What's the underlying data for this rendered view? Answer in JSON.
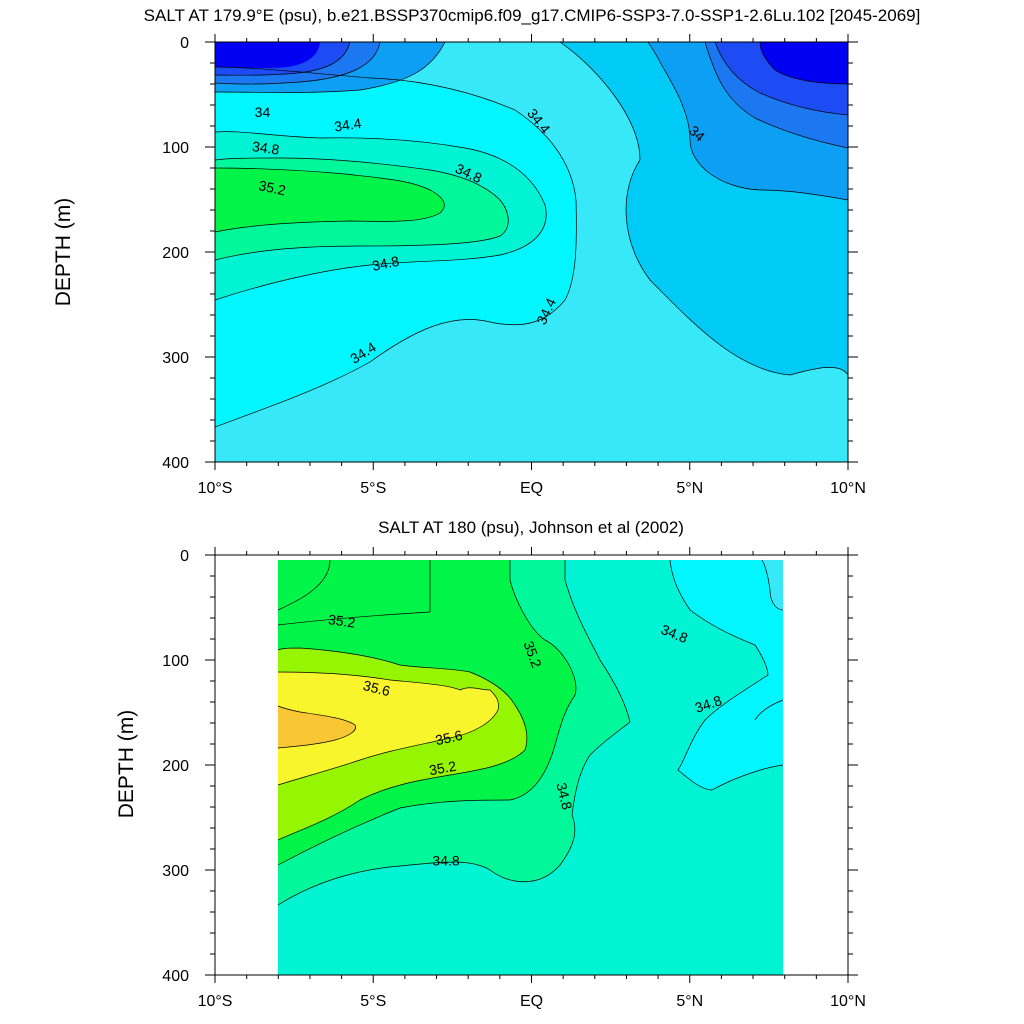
{
  "figure": {
    "background": "#ffffff",
    "fill_colors": {
      "lt33_6": "#0000f2",
      "33_6": "#1d4cf5",
      "33_8": "#1b78f1",
      "34_0": "#0d9ff3",
      "34_2": "#00cbf6",
      "34_4": "#36e8f8",
      "34_6": "#00f7ff",
      "34_8": "#00f3d2",
      "35_0": "#00f79a",
      "35_2": "#00f548",
      "35_4": "#96f500",
      "35_6": "#f9f52c",
      "35_8": "#fac734"
    }
  },
  "chart_data": [
    {
      "id": "model",
      "type": "contour",
      "title": "SALT AT 179.9°E (psu), b.e21.BSSP370cmip6.f09_g17.CMIP6-SSP3-7.0-SSP1-2.6Lu.102 [2045-2069]",
      "xlabel": "",
      "ylabel": "DEPTH (m)",
      "x_range": [
        -10,
        10
      ],
      "y_range": [
        400,
        0
      ],
      "y_reversed": true,
      "x_ticks": [
        {
          "value": -10,
          "label": "10°S"
        },
        {
          "value": -5,
          "label": "5°S"
        },
        {
          "value": 0,
          "label": "EQ"
        },
        {
          "value": 5,
          "label": "5°N"
        },
        {
          "value": 10,
          "label": "10°N"
        }
      ],
      "y_ticks": [
        0,
        100,
        200,
        300,
        400
      ],
      "data_x_range": [
        -10,
        10
      ],
      "data_y_range": [
        5,
        400
      ],
      "contour_interval": 0.2,
      "contour_labels": [
        {
          "text": "34",
          "x": -8.5,
          "y": 68,
          "angle": 0
        },
        {
          "text": "34.4",
          "x": -5.8,
          "y": 80,
          "angle": -8
        },
        {
          "text": "34.8",
          "x": -8.4,
          "y": 102,
          "angle": 8
        },
        {
          "text": "35.2",
          "x": -8.2,
          "y": 140,
          "angle": 12
        },
        {
          "text": "34.8",
          "x": -2.0,
          "y": 126,
          "angle": 25
        },
        {
          "text": "34.8",
          "x": -4.6,
          "y": 212,
          "angle": -12
        },
        {
          "text": "34.4",
          "x": 0.2,
          "y": 76,
          "angle": 52
        },
        {
          "text": "34",
          "x": 5.2,
          "y": 88,
          "angle": 42
        },
        {
          "text": "34.4",
          "x": 0.5,
          "y": 257,
          "angle": -65
        },
        {
          "text": "34.4",
          "x": -5.3,
          "y": 297,
          "angle": -32
        }
      ]
    },
    {
      "id": "obs",
      "type": "contour",
      "title": "SALT AT 180 (psu), Johnson et al (2002)",
      "xlabel": "",
      "ylabel": "DEPTH (m)",
      "x_range": [
        -10,
        10
      ],
      "y_range": [
        400,
        0
      ],
      "y_reversed": true,
      "x_ticks": [
        {
          "value": -10,
          "label": "10°S"
        },
        {
          "value": -5,
          "label": "5°S"
        },
        {
          "value": 0,
          "label": "EQ"
        },
        {
          "value": 5,
          "label": "5°N"
        },
        {
          "value": 10,
          "label": "10°N"
        }
      ],
      "y_ticks": [
        0,
        100,
        200,
        300,
        400
      ],
      "data_x_range": [
        -8,
        8
      ],
      "data_y_range": [
        5,
        400
      ],
      "contour_interval": 0.2,
      "contour_labels": [
        {
          "text": "35.2",
          "x": -6.0,
          "y": 64,
          "angle": 8
        },
        {
          "text": "35.6",
          "x": -4.9,
          "y": 128,
          "angle": 14
        },
        {
          "text": "35.6",
          "x": -2.6,
          "y": 175,
          "angle": -12
        },
        {
          "text": "35.2",
          "x": -2.8,
          "y": 204,
          "angle": -10
        },
        {
          "text": "35.2",
          "x": 0.0,
          "y": 95,
          "angle": 70
        },
        {
          "text": "34.8",
          "x": 4.5,
          "y": 76,
          "angle": 22
        },
        {
          "text": "34.8",
          "x": 5.6,
          "y": 143,
          "angle": -18
        },
        {
          "text": "34.8",
          "x": 1.0,
          "y": 230,
          "angle": 76
        },
        {
          "text": "34.8",
          "x": -2.7,
          "y": 292,
          "angle": 0
        }
      ]
    }
  ]
}
